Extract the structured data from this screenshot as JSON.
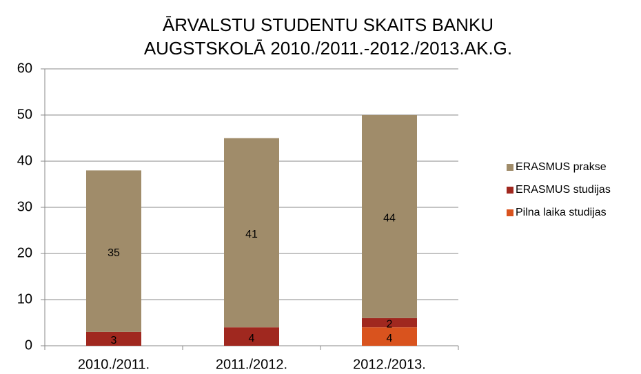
{
  "chart_data": {
    "type": "stacked_bar",
    "title": [
      "ĀRVALSTU STUDENTU SKAITS BANKU",
      "AUGSTSKOLĀ 2010./2011.-2012./2013.AK.G."
    ],
    "categories": [
      "2010./2011.",
      "2011./2012.",
      "2012./2013."
    ],
    "series": [
      {
        "name": "Pilna laika studijas",
        "color": "#d9531e",
        "values": [
          null,
          null,
          4
        ]
      },
      {
        "name": "ERASMUS studijas",
        "color": "#a0281f",
        "values": [
          3,
          4,
          2
        ]
      },
      {
        "name": "ERASMUS prakse",
        "color": "#a08c6a",
        "values": [
          35,
          41,
          44
        ]
      }
    ],
    "ylim": [
      0,
      60
    ],
    "yticks": [
      0,
      10,
      20,
      30,
      40,
      50,
      60
    ],
    "grid": true,
    "legend": "right"
  }
}
